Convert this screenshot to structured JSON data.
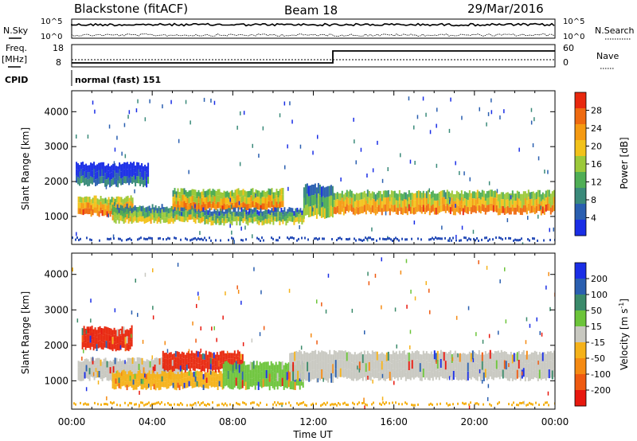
{
  "header": {
    "station": "Blackstone (fitACF)",
    "beam": "Beam 18",
    "date": "29/Mar/2016"
  },
  "noise_panel": {
    "left_label": "N.Sky",
    "right_label": "N.Search",
    "ticks": [
      "10^5",
      "10^0"
    ]
  },
  "freq_panel": {
    "left_label_1": "Freq.",
    "left_label_2": "[MHz]",
    "right_label": "Nave",
    "left_ticks": [
      "18",
      "8"
    ],
    "right_ticks": [
      "60",
      "0"
    ]
  },
  "cpid": {
    "label": "CPID",
    "value": "normal (fast) 151"
  },
  "chart_data": [
    {
      "type": "heatmap",
      "title": "",
      "quantity": "Power",
      "ylabel": "Slant Range [km]",
      "xlabel": "Time UT",
      "ylim": [
        200,
        4600
      ],
      "xlim": [
        0,
        24
      ],
      "x_ticks": [
        "00:00",
        "04:00",
        "08:00",
        "12:00",
        "16:00",
        "20:00",
        "00:00"
      ],
      "y_ticks": [
        "1000",
        "2000",
        "3000",
        "4000"
      ],
      "colorbar": {
        "label": "Power [dB]",
        "ticks": [
          "4",
          "8",
          "12",
          "16",
          "20",
          "24",
          "28"
        ],
        "colors": [
          "#1a2ee6",
          "#2a5fb0",
          "#3a8a7a",
          "#4fae55",
          "#9cc93a",
          "#f2c21a",
          "#f59a12",
          "#ef6a10",
          "#e8280e"
        ]
      },
      "bands": [
        {
          "t0": 0.3,
          "t1": 3.0,
          "r0": 1050,
          "r1": 1550,
          "level": 0.75
        },
        {
          "t0": 2.0,
          "t1": 6.5,
          "r0": 850,
          "r1": 1300,
          "level": 0.5
        },
        {
          "t0": 5.0,
          "t1": 10.5,
          "r0": 1200,
          "r1": 1750,
          "level": 0.7
        },
        {
          "t0": 6.5,
          "t1": 11.5,
          "r0": 800,
          "r1": 1200,
          "level": 0.45
        },
        {
          "t0": 11.5,
          "t1": 13.0,
          "r0": 1000,
          "r1": 1900,
          "level": 0.45
        },
        {
          "t0": 13.0,
          "t1": 24.0,
          "r0": 1100,
          "r1": 1700,
          "level": 0.7
        },
        {
          "t0": 0.2,
          "t1": 3.8,
          "r0": 1900,
          "r1": 2500,
          "level": 0.15
        }
      ]
    },
    {
      "type": "heatmap",
      "title": "",
      "quantity": "Velocity",
      "ylabel": "Slant Range [km]",
      "xlabel": "Time UT",
      "ylim": [
        200,
        4600
      ],
      "xlim": [
        0,
        24
      ],
      "x_ticks": [
        "00:00",
        "04:00",
        "08:00",
        "12:00",
        "16:00",
        "20:00",
        "00:00"
      ],
      "y_ticks": [
        "1000",
        "2000",
        "3000",
        "4000"
      ],
      "colorbar": {
        "label_main": "Velocity [m s",
        "label_exp": "-1",
        "label_end": "]",
        "ticks": [
          "200",
          "100",
          "50",
          "15",
          "-15",
          "-50",
          "-100",
          "-200"
        ],
        "colors": [
          "#1a2ee6",
          "#2a5fb0",
          "#3a8a6a",
          "#6cc43a",
          "#c8c8c0",
          "#f5b21a",
          "#f58a12",
          "#ef5a10",
          "#e8180e"
        ]
      },
      "bands": [
        {
          "t0": 0.3,
          "t1": 5.5,
          "r0": 1050,
          "r1": 1600,
          "color": "#c8c8c0"
        },
        {
          "t0": 0.5,
          "t1": 3.0,
          "r0": 1900,
          "r1": 2500,
          "color": "#e8280e"
        },
        {
          "t0": 2.0,
          "t1": 7.5,
          "r0": 800,
          "r1": 1250,
          "color": "#f5b21a"
        },
        {
          "t0": 4.5,
          "t1": 8.5,
          "r0": 1300,
          "r1": 1800,
          "color": "#e8280e"
        },
        {
          "t0": 7.5,
          "t1": 11.5,
          "r0": 800,
          "r1": 1500,
          "color": "#6cc43a"
        },
        {
          "t0": 10.8,
          "t1": 13.0,
          "r0": 1000,
          "r1": 1800,
          "color": "#c8c8c0"
        },
        {
          "t0": 13.0,
          "t1": 24.0,
          "r0": 1050,
          "r1": 1800,
          "color": "#c8c8c0"
        }
      ]
    }
  ]
}
